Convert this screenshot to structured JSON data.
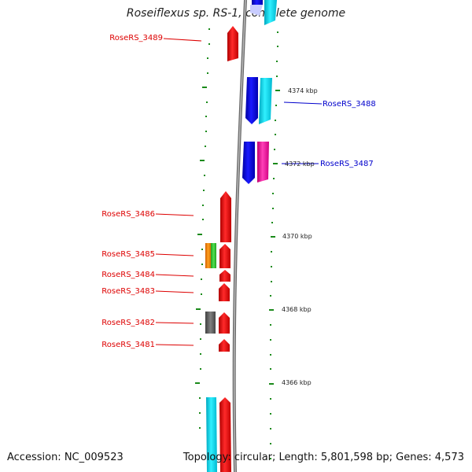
{
  "title": "Roseiflexus sp. RS-1, complete genome",
  "accession": "Accession: NC_009523",
  "topology": "Topology: circular; Length: 5,801,598 bp; Genes: 4,573",
  "colors": {
    "left_label": "#dd0000",
    "right_label": "#0000cc",
    "tick": "#1a8a1a",
    "backbone": "#8a8a8a",
    "red": "#ff0000",
    "blue": "#0000ff",
    "cyan": "#00e5ff",
    "magenta": "#ff1aa8",
    "orange": "#ff8c00",
    "green": "#33cc33",
    "gray": "#666666",
    "lavender": "#c8ccff"
  },
  "ticks": [
    {
      "label": "4374 kbp"
    },
    {
      "label": "4372 kbp"
    },
    {
      "label": "4370 kbp"
    },
    {
      "label": "4368 kbp"
    },
    {
      "label": "4366 kbp"
    }
  ],
  "genes_left": [
    {
      "label": "RoseRS_3489"
    },
    {
      "label": "RoseRS_3486"
    },
    {
      "label": "RoseRS_3485"
    },
    {
      "label": "RoseRS_3484"
    },
    {
      "label": "RoseRS_3483"
    },
    {
      "label": "RoseRS_3482"
    },
    {
      "label": "RoseRS_3481"
    }
  ],
  "genes_right": [
    {
      "label": "RoseRS_3488"
    },
    {
      "label": "RoseRS_3487"
    }
  ]
}
